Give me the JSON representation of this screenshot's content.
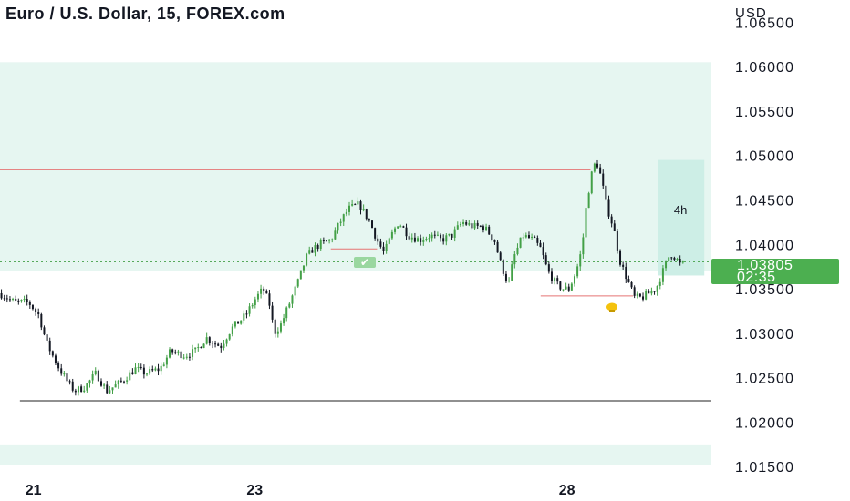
{
  "header": {
    "title": "Euro / U.S. Dollar, 15, FOREX.com"
  },
  "price_tag": {
    "price": "1.03805",
    "countdown": "02:35",
    "color": "#4caf50"
  },
  "box_label": "4h",
  "icons": {
    "check": "check-icon",
    "bulb": "lightbulb-icon"
  },
  "colors": {
    "up": "#43a047",
    "down": "#131722",
    "zone": "#e6f6f1",
    "box": "#cdeee6",
    "resistance_line": "#e57373",
    "support_line": "#222222"
  },
  "chart_data": {
    "type": "candlestick",
    "title": "Euro / U.S. Dollar, 15, FOREX.com",
    "currency_label": "USD",
    "y_ticks": [
      "1.06500",
      "1.06000",
      "1.05500",
      "1.05000",
      "1.04500",
      "1.04000",
      "1.03500",
      "1.03000",
      "1.02500",
      "1.02000",
      "1.01500"
    ],
    "ylim": [
      1.014,
      1.0675
    ],
    "x_ticks": [
      {
        "label": "21",
        "t": 0.047
      },
      {
        "label": "23",
        "t": 0.358
      },
      {
        "label": "28",
        "t": 0.797
      }
    ],
    "last_price": 1.03805,
    "zones": [
      {
        "from": 1.037,
        "to": 1.0605
      },
      {
        "from": 1.0152,
        "to": 1.0175
      }
    ],
    "levels": [
      {
        "price": 1.0484,
        "t_from": 0.0,
        "t_to": 0.83,
        "kind": "resistance"
      },
      {
        "price": 1.0342,
        "t_from": 0.76,
        "t_to": 0.89,
        "kind": "support"
      },
      {
        "price": 1.0395,
        "t_from": 0.465,
        "t_to": 0.53,
        "kind": "support"
      },
      {
        "price": 1.0224,
        "t_from": 0.028,
        "t_to": 1.0,
        "kind": "low"
      }
    ],
    "box": {
      "price_top": 1.0495,
      "price_bottom": 1.0365,
      "t_from": 0.925,
      "t_to": 0.99
    },
    "path": [
      [
        0.0,
        1.0345
      ],
      [
        0.02,
        1.0335
      ],
      [
        0.04,
        1.0335
      ],
      [
        0.055,
        1.032
      ],
      [
        0.065,
        1.029
      ],
      [
        0.08,
        1.0265
      ],
      [
        0.095,
        1.0245
      ],
      [
        0.105,
        1.0235
      ],
      [
        0.12,
        1.024
      ],
      [
        0.135,
        1.0255
      ],
      [
        0.15,
        1.0235
      ],
      [
        0.17,
        1.0245
      ],
      [
        0.19,
        1.026
      ],
      [
        0.205,
        1.0255
      ],
      [
        0.225,
        1.026
      ],
      [
        0.24,
        1.028
      ],
      [
        0.26,
        1.0275
      ],
      [
        0.275,
        1.028
      ],
      [
        0.29,
        1.0295
      ],
      [
        0.31,
        1.0285
      ],
      [
        0.325,
        1.0305
      ],
      [
        0.345,
        1.032
      ],
      [
        0.36,
        1.034
      ],
      [
        0.37,
        1.035
      ],
      [
        0.38,
        1.033
      ],
      [
        0.385,
        1.03
      ],
      [
        0.395,
        1.031
      ],
      [
        0.41,
        1.034
      ],
      [
        0.42,
        1.036
      ],
      [
        0.43,
        1.0385
      ],
      [
        0.44,
        1.0395
      ],
      [
        0.45,
        1.04
      ],
      [
        0.465,
        1.0405
      ],
      [
        0.478,
        1.0425
      ],
      [
        0.49,
        1.044
      ],
      [
        0.505,
        1.0445
      ],
      [
        0.52,
        1.0425
      ],
      [
        0.53,
        1.0405
      ],
      [
        0.54,
        1.039
      ],
      [
        0.55,
        1.041
      ],
      [
        0.56,
        1.0425
      ],
      [
        0.575,
        1.041
      ],
      [
        0.59,
        1.0405
      ],
      [
        0.605,
        1.041
      ],
      [
        0.62,
        1.0405
      ],
      [
        0.635,
        1.041
      ],
      [
        0.65,
        1.0425
      ],
      [
        0.665,
        1.042
      ],
      [
        0.68,
        1.042
      ],
      [
        0.695,
        1.0405
      ],
      [
        0.705,
        1.0375
      ],
      [
        0.715,
        1.0355
      ],
      [
        0.722,
        1.0385
      ],
      [
        0.735,
        1.041
      ],
      [
        0.75,
        1.0405
      ],
      [
        0.76,
        1.0395
      ],
      [
        0.77,
        1.037
      ],
      [
        0.782,
        1.0355
      ],
      [
        0.792,
        1.035
      ],
      [
        0.8,
        1.035
      ],
      [
        0.81,
        1.037
      ],
      [
        0.818,
        1.0395
      ],
      [
        0.825,
        1.045
      ],
      [
        0.832,
        1.048
      ],
      [
        0.838,
        1.0495
      ],
      [
        0.845,
        1.0475
      ],
      [
        0.852,
        1.0445
      ],
      [
        0.862,
        1.042
      ],
      [
        0.872,
        1.038
      ],
      [
        0.882,
        1.036
      ],
      [
        0.892,
        1.034
      ],
      [
        0.902,
        1.034
      ],
      [
        0.912,
        1.0345
      ],
      [
        0.922,
        1.035
      ],
      [
        0.932,
        1.037
      ],
      [
        0.942,
        1.039
      ],
      [
        0.95,
        1.0385
      ],
      [
        0.958,
        1.0375
      ],
      [
        0.962,
        1.0381
      ]
    ]
  }
}
